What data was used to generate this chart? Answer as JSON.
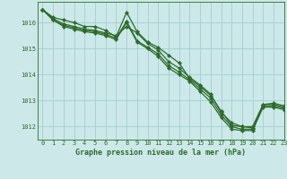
{
  "title": "Graphe pression niveau de la mer (hPa)",
  "ylim": [
    1011.5,
    1016.8
  ],
  "xlim": [
    -0.5,
    23
  ],
  "bg_color": "#cce8e8",
  "line_color": "#2d6b2d",
  "grid_color": "#99cccc",
  "series": [
    [
      1016.5,
      1016.2,
      1016.1,
      1016.0,
      1015.85,
      1015.85,
      1015.7,
      1015.45,
      1016.4,
      1015.65,
      1015.25,
      1015.05,
      1014.75,
      1014.45,
      1013.85,
      1013.55,
      1013.2,
      1012.6,
      1012.05,
      1012.0,
      1011.95,
      1012.85,
      1012.9,
      1012.8
    ],
    [
      1016.5,
      1016.15,
      1015.95,
      1015.85,
      1015.75,
      1015.7,
      1015.6,
      1015.5,
      1015.85,
      1015.6,
      1015.2,
      1014.95,
      1014.5,
      1014.25,
      1013.9,
      1013.6,
      1013.25,
      1012.55,
      1012.15,
      1012.0,
      1012.0,
      1012.85,
      1012.85,
      1012.75
    ],
    [
      1016.5,
      1016.1,
      1015.9,
      1015.8,
      1015.7,
      1015.65,
      1015.55,
      1015.4,
      1016.05,
      1015.3,
      1015.05,
      1014.8,
      1014.35,
      1014.1,
      1013.8,
      1013.45,
      1013.1,
      1012.45,
      1012.0,
      1011.9,
      1011.9,
      1012.8,
      1012.8,
      1012.7
    ],
    [
      1016.5,
      1016.1,
      1015.85,
      1015.75,
      1015.65,
      1015.6,
      1015.5,
      1015.35,
      1016.0,
      1015.25,
      1015.0,
      1014.7,
      1014.25,
      1014.0,
      1013.75,
      1013.35,
      1012.95,
      1012.35,
      1011.9,
      1011.85,
      1011.85,
      1012.75,
      1012.75,
      1012.65
    ]
  ],
  "yticks": [
    1012,
    1013,
    1014,
    1015,
    1016
  ],
  "xticks": [
    0,
    1,
    2,
    3,
    4,
    5,
    6,
    7,
    8,
    9,
    10,
    11,
    12,
    13,
    14,
    15,
    16,
    17,
    18,
    19,
    20,
    21,
    22,
    23
  ],
  "tick_fontsize": 5.0,
  "title_fontsize": 6.0,
  "marker_size": 2.2,
  "line_width": 0.9
}
